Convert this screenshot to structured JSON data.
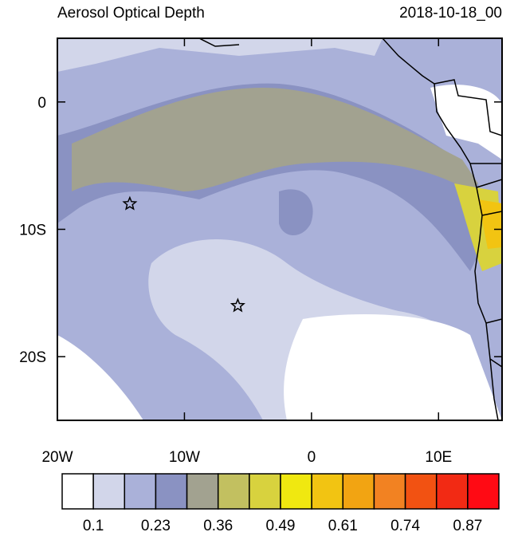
{
  "title": "Aerosol Optical Depth",
  "timestamp": "2018-10-18_00",
  "map": {
    "lonlim": [
      -20,
      15
    ],
    "latlim": [
      -25,
      5
    ],
    "lon_ticks": [
      {
        "value": -20,
        "label": "20W"
      },
      {
        "value": -10,
        "label": "10W"
      },
      0,
      {
        "value": 10,
        "label": "10E"
      }
    ],
    "lat_ticks": [
      0,
      {
        "value": -10,
        "label": "10S"
      },
      {
        "value": -20,
        "label": "20S"
      }
    ],
    "markers": [
      {
        "lon": -14.3,
        "lat": -8
      },
      {
        "lon": -5.8,
        "lat": -16
      }
    ]
  },
  "colorbar": {
    "colors": [
      "#ffffff",
      "#d2d6ea",
      "#aab1d9",
      "#8a92c2",
      "#a2a290",
      "#c2c060",
      "#d8d23e",
      "#f0e810",
      "#f2c412",
      "#f2a412",
      "#f28222",
      "#f25212",
      "#f22a14",
      "#ff0a14"
    ],
    "labels": [
      0.1,
      0.23,
      0.36,
      0.49,
      0.61,
      0.74,
      0.87
    ]
  }
}
